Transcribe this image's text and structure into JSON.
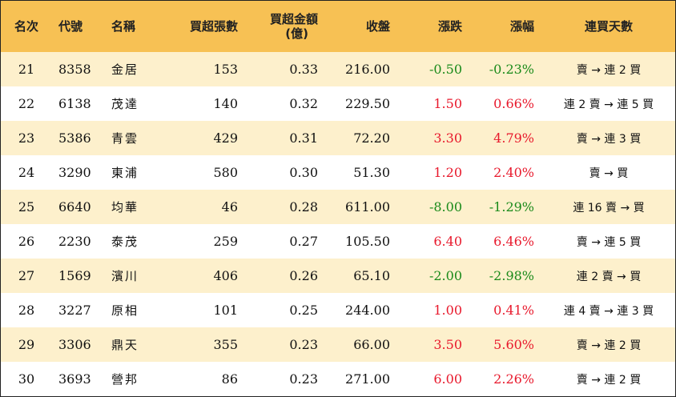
{
  "headers": {
    "rank": "名次",
    "code": "代號",
    "name": "名稱",
    "net_buy_lots": "買超張數",
    "net_buy_amount_l1": "買超金額",
    "net_buy_amount_l2": "(億)",
    "close": "收盤",
    "change": "漲跌",
    "change_pct": "漲幅",
    "streak": "連買天數"
  },
  "colors": {
    "header_bg": "#f7c154",
    "row_alt_bg": "#fdf0cc",
    "up": "#e8192c",
    "down": "#1a8a1a"
  },
  "rows": [
    {
      "rank": "21",
      "code": "8358",
      "name": "金居",
      "lots": "153",
      "amount": "0.33",
      "close": "216.00",
      "change": "-0.50",
      "pct": "-0.23%",
      "dir": "down",
      "streak": "賣 → 連 2 買"
    },
    {
      "rank": "22",
      "code": "6138",
      "name": "茂達",
      "lots": "140",
      "amount": "0.32",
      "close": "229.50",
      "change": "1.50",
      "pct": "0.66%",
      "dir": "up",
      "streak": "連 2 賣 → 連 5 買"
    },
    {
      "rank": "23",
      "code": "5386",
      "name": "青雲",
      "lots": "429",
      "amount": "0.31",
      "close": "72.20",
      "change": "3.30",
      "pct": "4.79%",
      "dir": "up",
      "streak": "賣 → 連 3 買"
    },
    {
      "rank": "24",
      "code": "3290",
      "name": "東浦",
      "lots": "580",
      "amount": "0.30",
      "close": "51.30",
      "change": "1.20",
      "pct": "2.40%",
      "dir": "up",
      "streak": "賣 → 買"
    },
    {
      "rank": "25",
      "code": "6640",
      "name": "均華",
      "lots": "46",
      "amount": "0.28",
      "close": "611.00",
      "change": "-8.00",
      "pct": "-1.29%",
      "dir": "down",
      "streak": "連 16 賣 → 買"
    },
    {
      "rank": "26",
      "code": "2230",
      "name": "泰茂",
      "lots": "259",
      "amount": "0.27",
      "close": "105.50",
      "change": "6.40",
      "pct": "6.46%",
      "dir": "up",
      "streak": "賣 → 連 5 買"
    },
    {
      "rank": "27",
      "code": "1569",
      "name": "濱川",
      "lots": "406",
      "amount": "0.26",
      "close": "65.10",
      "change": "-2.00",
      "pct": "-2.98%",
      "dir": "down",
      "streak": "連 2 賣 → 買"
    },
    {
      "rank": "28",
      "code": "3227",
      "name": "原相",
      "lots": "101",
      "amount": "0.25",
      "close": "244.00",
      "change": "1.00",
      "pct": "0.41%",
      "dir": "up",
      "streak": "連 4 賣 → 連 3 買"
    },
    {
      "rank": "29",
      "code": "3306",
      "name": "鼎天",
      "lots": "355",
      "amount": "0.23",
      "close": "66.00",
      "change": "3.50",
      "pct": "5.60%",
      "dir": "up",
      "streak": "賣 → 連 2 買"
    },
    {
      "rank": "30",
      "code": "3693",
      "name": "營邦",
      "lots": "86",
      "amount": "0.23",
      "close": "271.00",
      "change": "6.00",
      "pct": "2.26%",
      "dir": "up",
      "streak": "賣 → 連 2 買"
    }
  ]
}
